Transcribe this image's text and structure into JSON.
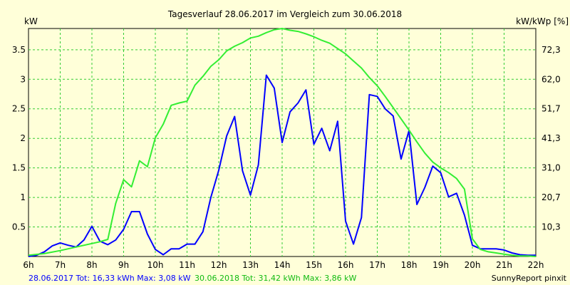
{
  "chart_data": {
    "type": "line",
    "title": "Tagesverlauf 28.06.2017 im Vergleich zum 30.06.2018",
    "ylabel_left": "kW",
    "ylabel_right": "kW/kWp [%]",
    "x_ticks": [
      "6h",
      "7h",
      "8h",
      "9h",
      "10h",
      "11h",
      "12h",
      "13h",
      "14h",
      "15h",
      "16h",
      "17h",
      "18h",
      "19h",
      "20h",
      "21h",
      "22h"
    ],
    "x_range": [
      6,
      22
    ],
    "y_ticks_left": [
      "0.5",
      "1",
      "1.5",
      "2",
      "2.5",
      "3",
      "3.5"
    ],
    "y_tick_values_left": [
      0.5,
      1,
      1.5,
      2,
      2.5,
      3,
      3.5
    ],
    "y_ticks_right": [
      "10,3",
      "20,7",
      "31,0",
      "41,3",
      "51,7",
      "62,0",
      "72,3"
    ],
    "ylim": [
      0,
      3.86
    ],
    "grid": true,
    "colors": {
      "background": "#ffffd9",
      "grid": "#33cc33",
      "axis": "#000000"
    },
    "series": [
      {
        "name": "28.06.2017",
        "color": "#0000ff",
        "x": [
          6.0,
          6.25,
          6.5,
          6.75,
          7.0,
          7.25,
          7.5,
          7.75,
          8.0,
          8.25,
          8.5,
          8.75,
          9.0,
          9.25,
          9.5,
          9.75,
          10.0,
          10.25,
          10.5,
          10.75,
          11.0,
          11.25,
          11.5,
          11.75,
          12.0,
          12.25,
          12.5,
          12.75,
          13.0,
          13.25,
          13.5,
          13.75,
          14.0,
          14.25,
          14.5,
          14.75,
          15.0,
          15.25,
          15.5,
          15.75,
          16.0,
          16.25,
          16.5,
          16.75,
          17.0,
          17.25,
          17.5,
          17.75,
          18.0,
          18.25,
          18.5,
          18.75,
          19.0,
          19.25,
          19.5,
          19.75,
          20.0,
          20.25,
          20.5,
          20.75,
          21.0,
          21.25,
          21.5,
          21.75,
          22.0
        ],
        "values": [
          0.0,
          0.02,
          0.08,
          0.18,
          0.23,
          0.19,
          0.16,
          0.28,
          0.51,
          0.26,
          0.2,
          0.28,
          0.46,
          0.76,
          0.76,
          0.38,
          0.12,
          0.03,
          0.13,
          0.13,
          0.21,
          0.21,
          0.42,
          1.0,
          1.46,
          2.04,
          2.37,
          1.45,
          1.04,
          1.55,
          3.07,
          2.85,
          1.93,
          2.45,
          2.6,
          2.82,
          1.9,
          2.17,
          1.79,
          2.29,
          0.6,
          0.21,
          0.66,
          2.74,
          2.71,
          2.5,
          2.38,
          1.65,
          2.13,
          0.88,
          1.17,
          1.53,
          1.42,
          1.01,
          1.07,
          0.7,
          0.19,
          0.13,
          0.13,
          0.13,
          0.11,
          0.06,
          0.03,
          0.02,
          0.02
        ]
      },
      {
        "name": "30.06.2018",
        "color": "#33ee33",
        "x": [
          6.0,
          6.5,
          7.0,
          7.5,
          8.0,
          8.25,
          8.5,
          8.75,
          9.0,
          9.25,
          9.5,
          9.75,
          10.0,
          10.25,
          10.5,
          10.75,
          11.0,
          11.25,
          11.5,
          11.75,
          12.0,
          12.25,
          12.5,
          12.75,
          13.0,
          13.25,
          13.5,
          13.75,
          14.0,
          14.25,
          14.5,
          14.75,
          15.0,
          15.25,
          15.5,
          15.75,
          16.0,
          16.25,
          16.5,
          16.75,
          17.0,
          17.25,
          17.5,
          17.75,
          18.0,
          18.25,
          18.5,
          18.75,
          19.0,
          19.25,
          19.5,
          19.75,
          20.0,
          20.25,
          20.5,
          20.75,
          21.0,
          21.25,
          21.5,
          21.75,
          22.0
        ],
        "values": [
          0.02,
          0.05,
          0.1,
          0.16,
          0.22,
          0.25,
          0.29,
          0.9,
          1.3,
          1.18,
          1.62,
          1.52,
          2.01,
          2.24,
          2.56,
          2.6,
          2.63,
          2.9,
          3.05,
          3.22,
          3.33,
          3.48,
          3.56,
          3.62,
          3.7,
          3.73,
          3.79,
          3.84,
          3.86,
          3.83,
          3.81,
          3.77,
          3.72,
          3.66,
          3.61,
          3.52,
          3.43,
          3.31,
          3.19,
          3.03,
          2.89,
          2.71,
          2.52,
          2.33,
          2.14,
          1.94,
          1.75,
          1.6,
          1.5,
          1.42,
          1.32,
          1.14,
          0.3,
          0.12,
          0.08,
          0.06,
          0.04,
          0.02,
          0.01,
          0.01,
          0.0
        ]
      }
    ]
  },
  "footer": {
    "left_2017": "28.06.2017 Tot: 16,33 kWh Max: 3,08 kW",
    "left_2018": "30.06.2018 Tot: 31,42 kWh Max: 3,86 kW",
    "right": "SunnyReport pinxit"
  }
}
